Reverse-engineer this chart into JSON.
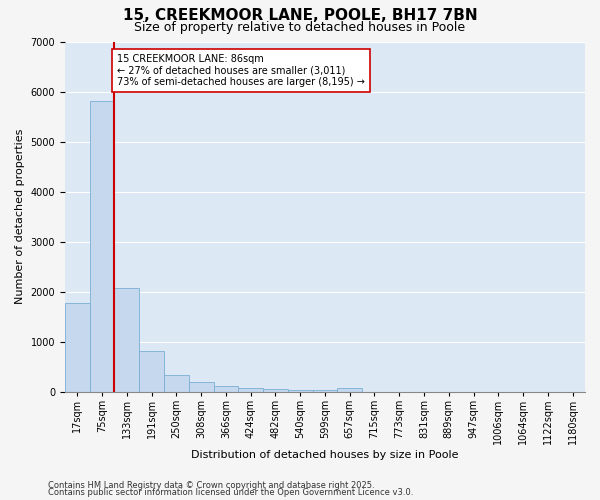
{
  "title": "15, CREEKMOOR LANE, POOLE, BH17 7BN",
  "subtitle": "Size of property relative to detached houses in Poole",
  "xlabel": "Distribution of detached houses by size in Poole",
  "ylabel": "Number of detached properties",
  "categories": [
    "17sqm",
    "75sqm",
    "133sqm",
    "191sqm",
    "250sqm",
    "308sqm",
    "366sqm",
    "424sqm",
    "482sqm",
    "540sqm",
    "599sqm",
    "657sqm",
    "715sqm",
    "773sqm",
    "831sqm",
    "889sqm",
    "947sqm",
    "1006sqm",
    "1064sqm",
    "1122sqm",
    "1180sqm"
  ],
  "values": [
    1780,
    5820,
    2080,
    820,
    330,
    190,
    110,
    75,
    55,
    45,
    35,
    70,
    0,
    0,
    0,
    0,
    0,
    0,
    0,
    0,
    0
  ],
  "bar_color": "#c5d8ee",
  "bar_edge_color": "#7aafd4",
  "vline_color": "#cc0000",
  "vline_position": 1.5,
  "annotation_text": "15 CREEKMOOR LANE: 86sqm\n← 27% of detached houses are smaller (3,011)\n73% of semi-detached houses are larger (8,195) →",
  "annotation_box_color": "#cc0000",
  "bg_color": "#dde8f5",
  "plot_bg_color": "#dde8f5",
  "fig_bg_color": "#f5f5f5",
  "grid_color": "#ffffff",
  "footnote1": "Contains HM Land Registry data © Crown copyright and database right 2025.",
  "footnote2": "Contains public sector information licensed under the Open Government Licence v3.0.",
  "ylim": [
    0,
    7000
  ],
  "title_fontsize": 11,
  "subtitle_fontsize": 9,
  "ylabel_fontsize": 8,
  "xlabel_fontsize": 8,
  "tick_fontsize": 7,
  "annot_fontsize": 7,
  "footnote_fontsize": 6
}
